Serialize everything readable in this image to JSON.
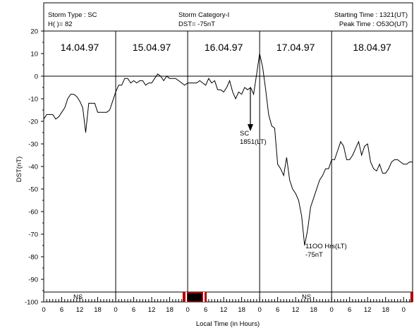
{
  "header": {
    "storm_type": "Storm Type : SC",
    "h_value": "H(  )= 82",
    "storm_category": "Storm Category-I",
    "dst_value": "DST= -75nT",
    "starting_time": "Starting Time : 1321(UT)",
    "peak_time": "Peak Time    : O53O(UT)"
  },
  "colors": {
    "line": "#000000",
    "marker_red": "#b00000",
    "marker_black": "#000000"
  },
  "chart_data": {
    "type": "line",
    "ylabel": "DST(nT)",
    "xlabel": "Local Time (in Hours)",
    "ylim": [
      -100,
      20
    ],
    "yticks": [
      20,
      10,
      0,
      -10,
      -20,
      -30,
      -40,
      -50,
      -60,
      -70,
      -80,
      -90,
      -100
    ],
    "xlim": [
      0,
      123
    ],
    "hour_tick_labels": [
      "0",
      "6",
      "12",
      "18"
    ],
    "days": [
      {
        "label": "14.04.97",
        "start": 0
      },
      {
        "label": "15.04.97",
        "start": 24
      },
      {
        "label": "16.04.97",
        "start": 48
      },
      {
        "label": "17.04.97",
        "start": 72
      },
      {
        "label": "18.04.97",
        "start": 96
      }
    ],
    "series": [
      {
        "x": [
          0,
          1,
          2,
          3,
          4,
          5,
          6,
          7,
          8,
          9,
          10,
          11,
          12,
          13,
          14,
          15,
          16,
          17,
          18,
          19,
          20,
          21,
          22,
          23,
          24,
          25,
          26,
          27,
          28,
          29,
          30,
          31,
          32,
          33,
          34,
          35,
          36,
          37,
          38,
          39,
          40,
          41,
          42,
          43,
          44,
          45,
          46,
          47,
          48,
          49,
          50,
          51,
          52,
          53,
          54,
          55,
          56,
          57,
          58,
          59,
          60,
          61,
          62,
          63,
          64,
          65,
          66,
          67,
          68,
          69,
          70,
          71,
          72,
          73,
          74,
          75,
          76,
          77,
          78,
          79,
          80,
          81,
          82,
          83,
          84,
          85,
          86,
          87,
          88,
          89,
          90,
          91,
          92,
          93,
          94,
          95,
          96,
          97,
          98,
          99,
          100,
          101,
          102,
          103,
          104,
          105,
          106,
          107,
          108,
          109,
          110,
          111,
          112,
          113,
          114,
          115,
          116,
          117,
          118,
          119,
          120,
          121,
          122,
          123
        ],
        "y": [
          -19,
          -17,
          -17,
          -17,
          -19,
          -18,
          -16,
          -14,
          -10,
          -8,
          -8,
          -9,
          -11,
          -14,
          -25,
          -12,
          -12,
          -12,
          -16,
          -16,
          -16,
          -16,
          -15,
          -11,
          -7,
          -4,
          -4,
          -1,
          -1,
          -3,
          -2,
          -3,
          -2,
          -2,
          -4,
          -3,
          -3,
          -1,
          1,
          0,
          -2,
          0,
          -1,
          -1,
          -1,
          -2,
          -3,
          -4,
          -3,
          -3,
          -3,
          -3,
          -2,
          -3,
          -4,
          -1,
          -3,
          -2,
          -6,
          -6,
          -7,
          -5,
          -2,
          -7,
          -10,
          -7,
          -8,
          -5,
          -6,
          -5,
          -8,
          1,
          10,
          4,
          -6,
          -17,
          -22,
          -23,
          -39,
          -41,
          -44,
          -36,
          -46,
          -50,
          -52,
          -55,
          -62,
          -75,
          -68,
          -58,
          -54,
          -50,
          -46,
          -44,
          -41,
          -41,
          -37,
          -37,
          -33,
          -29,
          -31,
          -37,
          -37,
          -35,
          -32,
          -29,
          -35,
          -31,
          -30,
          -38,
          -41,
          -42,
          -39,
          -43,
          -43,
          -41,
          -38,
          -37,
          -37,
          -38,
          -39,
          -39,
          -38,
          -38
        ]
      }
    ],
    "annotations": [
      {
        "line1": "SC",
        "line2": "1851(LT)"
      },
      {
        "line1": "11OO Hrs(LT)",
        "line2": "-75nT"
      }
    ],
    "ns_labels": [
      "NS",
      "NS"
    ]
  }
}
